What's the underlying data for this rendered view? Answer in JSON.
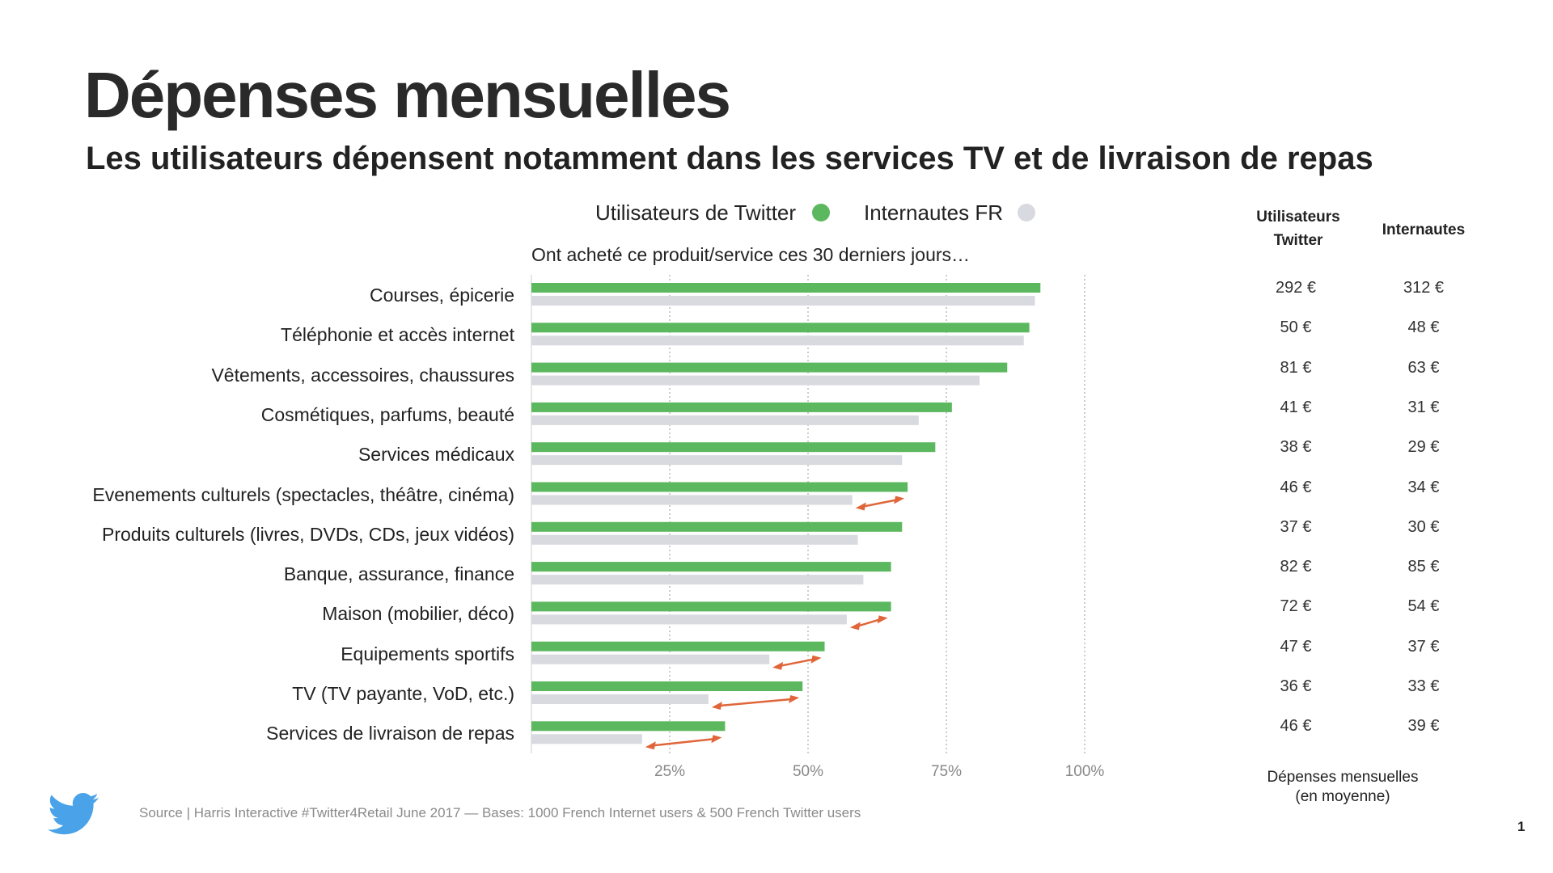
{
  "title": "Dépenses mensuelles",
  "subtitle": "Les utilisateurs dépensent notamment dans les services TV et de livraison de repas",
  "legend": [
    {
      "label": "Utilisateurs de Twitter",
      "color": "#5cb85f"
    },
    {
      "label": "Internautes FR",
      "color": "#d9dadf"
    }
  ],
  "question": "Ont acheté ce produit/service ces 30 derniers jours…",
  "table": {
    "col_twitter": "Utilisateurs Twitter",
    "col_twitter_line1": "Utilisateurs",
    "col_twitter_line2": "Twitter",
    "col_internautes": "Internautes",
    "footer_line1": "Dépenses mensuelles",
    "footer_line2": "(en moyenne)",
    "rows": [
      {
        "twitter": "292 €",
        "internautes": "312 €"
      },
      {
        "twitter": "50 €",
        "internautes": "48 €"
      },
      {
        "twitter": "81 €",
        "internautes": "63 €"
      },
      {
        "twitter": "41 €",
        "internautes": "31 €"
      },
      {
        "twitter": "38 €",
        "internautes": "29 €"
      },
      {
        "twitter": "46 €",
        "internautes": "34 €"
      },
      {
        "twitter": "37 €",
        "internautes": "30 €"
      },
      {
        "twitter": "82 €",
        "internautes": "85 €"
      },
      {
        "twitter": "72 €",
        "internautes": "54 €"
      },
      {
        "twitter": "47 €",
        "internautes": "37 €"
      },
      {
        "twitter": "36 €",
        "internautes": "33 €"
      },
      {
        "twitter": "46 €",
        "internautes": "39 €"
      }
    ]
  },
  "source": "Source | Harris Interactive #Twitter4Retail June 2017 — Bases: 1000 French Internet users & 500 French Twitter users",
  "page_number": "1",
  "logo_icon": "twitter-bird-icon",
  "colors": {
    "twitter": "#5cb85f",
    "internautes": "#d9dadf",
    "arrow": "#e0663a",
    "logo": "#4aa3e8"
  },
  "chart_data": {
    "type": "bar",
    "orientation": "horizontal",
    "title": "Ont acheté ce produit/service ces 30 derniers jours…",
    "categories": [
      "Courses, épicerie",
      "Téléphonie et accès internet",
      "Vêtements, accessoires, chaussures",
      "Cosmétiques, parfums, beauté",
      "Services médicaux",
      "Evenements culturels (spectacles, théâtre, cinéma)",
      "Produits culturels (livres, DVDs, CDs, jeux vidéos)",
      "Banque, assurance, finance",
      "Maison (mobilier, déco)",
      "Equipements sportifs",
      "TV (TV payante, VoD, etc.)",
      "Services de livraison de repas"
    ],
    "series": [
      {
        "name": "Utilisateurs de Twitter",
        "values": [
          92,
          90,
          86,
          76,
          73,
          68,
          67,
          65,
          65,
          53,
          49,
          35
        ]
      },
      {
        "name": "Internautes FR",
        "values": [
          91,
          89,
          81,
          70,
          67,
          58,
          59,
          60,
          57,
          43,
          32,
          20
        ]
      }
    ],
    "xlim": [
      0,
      100
    ],
    "xticks": [
      "25%",
      "50%",
      "75%",
      "100%"
    ],
    "xtick_values": [
      25,
      50,
      75,
      100
    ],
    "grid": true,
    "legend_position": "top",
    "highlighted_gaps": [
      5,
      8,
      9,
      10,
      11
    ]
  }
}
